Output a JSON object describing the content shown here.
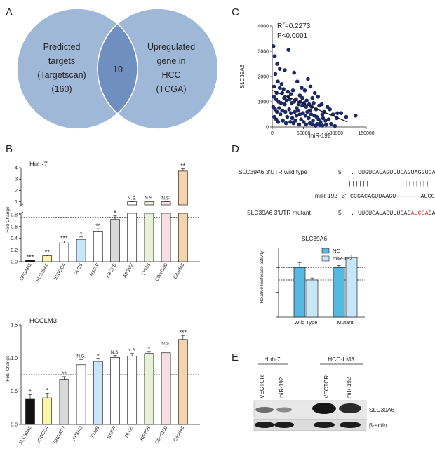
{
  "panelA": {
    "letter": "A",
    "left_lines": [
      "Predicted",
      "targets",
      "(Targetscan)",
      "(160)"
    ],
    "right_lines": [
      "Upregulated",
      "gene in",
      "HCC",
      "(TCGA)"
    ],
    "overlap": "10",
    "colors": {
      "fill": "#9fb8d8",
      "overlap": "#6f8fc0",
      "stroke": "#ffffff"
    }
  },
  "panelC": {
    "letter": "C",
    "r2_prefix": "R",
    "r2_sup": "2",
    "r2_value": "=0.2273",
    "p_text": "P<0.0001",
    "chart_data": {
      "type": "scatter",
      "xlabel": "miR-192",
      "ylabel": "SLC39A6",
      "xlim": [
        0,
        150000
      ],
      "ylim": [
        0,
        4000
      ],
      "x_ticks": [
        0,
        50000,
        100000,
        150000
      ],
      "x_tick_labels": [
        "0",
        "50000",
        "100000",
        "150000"
      ],
      "y_ticks": [
        0,
        1000,
        2000,
        3000,
        4000
      ],
      "y_tick_labels": [
        "0",
        "1000",
        "2000",
        "3000",
        "4000"
      ],
      "regression": {
        "x": [
          0,
          120000
        ],
        "y": [
          1450,
          200
        ]
      },
      "points": [
        [
          2000,
          3200
        ],
        [
          4000,
          2800
        ],
        [
          8000,
          2500
        ],
        [
          20000,
          2250
        ],
        [
          26000,
          3050
        ],
        [
          5000,
          2100
        ],
        [
          12000,
          2300
        ],
        [
          15000,
          1700
        ],
        [
          3000,
          1600
        ],
        [
          9000,
          1800
        ],
        [
          18000,
          1500
        ],
        [
          25000,
          1400
        ],
        [
          33000,
          1450
        ],
        [
          40000,
          1800
        ],
        [
          47000,
          1550
        ],
        [
          52000,
          1450
        ],
        [
          57000,
          1900
        ],
        [
          61000,
          1600
        ],
        [
          68000,
          1350
        ],
        [
          73000,
          1200
        ],
        [
          2500,
          1200
        ],
        [
          6000,
          1100
        ],
        [
          10000,
          1000
        ],
        [
          14000,
          950
        ],
        [
          19000,
          1150
        ],
        [
          23000,
          1050
        ],
        [
          28000,
          1100
        ],
        [
          31000,
          950
        ],
        [
          35000,
          1000
        ],
        [
          38000,
          1100
        ],
        [
          42000,
          900
        ],
        [
          45000,
          1000
        ],
        [
          48000,
          850
        ],
        [
          51000,
          950
        ],
        [
          55000,
          1050
        ],
        [
          59000,
          900
        ],
        [
          63000,
          800
        ],
        [
          66000,
          950
        ],
        [
          70000,
          700
        ],
        [
          75000,
          850
        ],
        [
          79000,
          900
        ],
        [
          83000,
          600
        ],
        [
          88000,
          800
        ],
        [
          92000,
          700
        ],
        [
          97000,
          500
        ],
        [
          103000,
          350
        ],
        [
          110000,
          550
        ],
        [
          118000,
          400
        ],
        [
          133000,
          450
        ],
        [
          1500,
          800
        ],
        [
          4500,
          700
        ],
        [
          7500,
          600
        ],
        [
          11000,
          750
        ],
        [
          13000,
          500
        ],
        [
          16000,
          650
        ],
        [
          21000,
          600
        ],
        [
          24000,
          400
        ],
        [
          27000,
          700
        ],
        [
          30000,
          550
        ],
        [
          32000,
          350
        ],
        [
          36000,
          600
        ],
        [
          39000,
          450
        ],
        [
          41000,
          650
        ],
        [
          44000,
          500
        ],
        [
          46000,
          300
        ],
        [
          49000,
          550
        ],
        [
          53000,
          450
        ],
        [
          56000,
          600
        ],
        [
          58000,
          350
        ],
        [
          62000,
          500
        ],
        [
          65000,
          250
        ],
        [
          67000,
          450
        ],
        [
          71000,
          400
        ],
        [
          74000,
          300
        ],
        [
          77000,
          200
        ],
        [
          81000,
          350
        ],
        [
          85000,
          250
        ],
        [
          90000,
          300
        ],
        [
          3500,
          400
        ],
        [
          6500,
          300
        ],
        [
          9500,
          200
        ],
        [
          17000,
          250
        ],
        [
          22000,
          150
        ],
        [
          29000,
          200
        ],
        [
          34000,
          150
        ],
        [
          37000,
          250
        ],
        [
          43000,
          100
        ],
        [
          50000,
          200
        ],
        [
          54000,
          100
        ],
        [
          60000,
          150
        ],
        [
          64000,
          100
        ],
        [
          69000,
          50
        ],
        [
          72000,
          120
        ],
        [
          76000,
          80
        ],
        [
          80000,
          60
        ],
        [
          86000,
          90
        ],
        [
          94000,
          120
        ],
        [
          100000,
          40
        ],
        [
          26000,
          1200
        ],
        [
          44000,
          1250
        ],
        [
          35000,
          2150
        ],
        [
          30000,
          1300
        ],
        [
          16000,
          1350
        ],
        [
          7000,
          1350
        ],
        [
          12000,
          1550
        ],
        [
          20000,
          900
        ],
        [
          48000,
          1150
        ],
        [
          54000,
          800
        ],
        [
          39000,
          750
        ],
        [
          60000,
          650
        ],
        [
          64000,
          1150
        ],
        [
          80000,
          500
        ],
        [
          104000,
          550
        ]
      ]
    }
  },
  "panelB": {
    "letter": "B",
    "huh7": {
      "cell_title": "Huh-7",
      "ylabel": "Fold Change",
      "chart_data": {
        "type": "bar",
        "categories": [
          "SRGAP3",
          "SLC39A6",
          "IGDCC4",
          "DLG5",
          "NSF-F",
          "KIF20B",
          "AP3M2",
          "TYMS",
          "C9orf100",
          "C4orf46"
        ],
        "values": [
          0.02,
          0.1,
          0.32,
          0.38,
          0.52,
          0.72,
          1.0,
          1.0,
          1.0,
          3.7
        ],
        "errors": [
          0.01,
          0.015,
          0.03,
          0.04,
          0.04,
          0.06,
          0.03,
          0.06,
          0.04,
          0.2
        ],
        "significance": [
          "***",
          "**",
          "***",
          "*",
          "**",
          "*",
          "N.S.",
          "N.S.",
          "N.S.",
          "**"
        ],
        "colors": [
          "#111111",
          "#fbf5a8",
          "#ffffff",
          "#c9e6f8",
          "#ffffff",
          "#d9d9d9",
          "#ffffff",
          "#e6f2d5",
          "#f6dfe4",
          "#f5d3ab"
        ],
        "lower_ticks": [
          0.0,
          0.2,
          0.4,
          0.6,
          0.8
        ],
        "lower_tick_labels": [
          "0.0",
          "0.2",
          "0.4",
          "0.6",
          "0.8"
        ],
        "upper_ticks": [
          1,
          2,
          3,
          4
        ],
        "upper_tick_labels": [
          "1",
          "2",
          "3",
          "4"
        ],
        "reference_line": 0.75
      }
    },
    "hcclm3": {
      "cell_title": "HCCLM3",
      "ylabel": "Fold Change",
      "chart_data": {
        "type": "bar",
        "categories": [
          "SLC39A6",
          "IGDCC4",
          "SRGAP3",
          "AP3M2",
          "TYMS",
          "NSF-F",
          "DLG5",
          "KIF20B",
          "C9orf100",
          "C4orf46"
        ],
        "values": [
          0.38,
          0.4,
          0.68,
          0.9,
          0.95,
          1.01,
          1.03,
          1.07,
          1.08,
          1.28
        ],
        "errors": [
          0.07,
          0.07,
          0.04,
          0.08,
          0.04,
          0.03,
          0.04,
          0.02,
          0.09,
          0.06
        ],
        "significance": [
          "*",
          "*",
          "**",
          "N.S.",
          "*",
          "N.S.",
          "N.S.",
          "*",
          "N.S.",
          "***"
        ],
        "colors": [
          "#111111",
          "#fbf5a8",
          "#d9d9d9",
          "#ffffff",
          "#c9e6f8",
          "#ffffff",
          "#ffffff",
          "#e6f2d5",
          "#f6dfe4",
          "#f5d3ab"
        ],
        "ylim": [
          0,
          1.5
        ],
        "y_ticks": [
          0.0,
          0.5,
          1.0,
          1.5
        ],
        "y_tick_labels": [
          "0.0",
          "0.5",
          "1.0",
          "1.5"
        ],
        "reference_line": 0.75
      }
    }
  },
  "panelD": {
    "letter": "D",
    "row1_label": "SLC39A6 3'UTR wild type",
    "row1_prime": "5'",
    "row1_seq": "...UUGUCAUAGUUUCAGUAGGUCAU...",
    "bars": "||||||          |||||||",
    "row2_label": "miR-192",
    "row2_prime": "3'",
    "row2_seq": "CCGACAGUUAAGU-------AUCCAGUC",
    "row3_label": "SLC39A6 3'UTR mutant",
    "row3_prime": "5'",
    "row3_seq_a": "...UUGUCAUAGUUUCAG",
    "row3_seq_mut": "AUCCA",
    "row3_seq_b": "CAU...",
    "mutant_color": "#e8231f",
    "chart_data": {
      "type": "bar",
      "title": "SLC39A6",
      "ylabel": "Relative luciferase activity",
      "categories": [
        "Wild Type",
        "Mutant"
      ],
      "series": [
        {
          "name": "NC",
          "values": [
            1.0,
            1.0
          ],
          "errors": [
            0.1,
            0.04
          ],
          "color": "#56b8e0"
        },
        {
          "name": "miR-192",
          "values": [
            0.75,
            1.2
          ],
          "errors": [
            0.04,
            0.05
          ],
          "color": "#c7e6f7"
        }
      ],
      "ylim": [
        0,
        1.4
      ],
      "reference_lines": [
        1.0,
        0.75
      ]
    }
  },
  "panelE": {
    "letter": "E",
    "group1": "Huh-7",
    "group2": "HCC-LM3",
    "lanes": [
      "VECTOR",
      "miR-192",
      "VECTOR",
      "miR-192"
    ],
    "band1": "SLC39A6",
    "band2": "β-actin"
  }
}
